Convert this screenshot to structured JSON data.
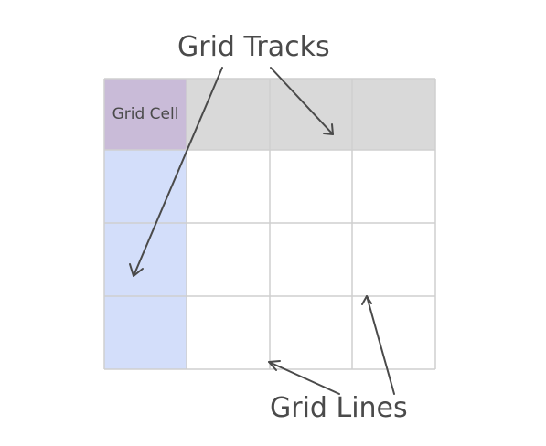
{
  "labels": {
    "grid_tracks": "Grid Tracks",
    "grid_lines": "Grid Lines",
    "grid_cell": "Grid Cell"
  },
  "colors": {
    "grid_cell_fill": "#c9bbd8",
    "column_track_fill": "#d3defa",
    "row_track_fill": "#d9d9d9",
    "grid_line": "#cfcfcf",
    "arrow": "#4a4a4a",
    "text": "#4a4a4a"
  },
  "grid": {
    "columns": 4,
    "rows": 4
  }
}
